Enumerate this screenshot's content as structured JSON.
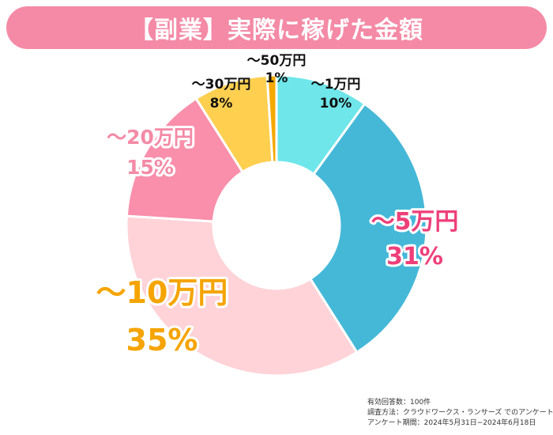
{
  "title": "【副業】実際に稼げた金額",
  "chart_data": {
    "type": "pie",
    "donut": true,
    "categories": [
      "～1万円",
      "～5万円",
      "～10万円",
      "～20万円",
      "～30万円",
      "～50万円"
    ],
    "values": [
      10,
      31,
      35,
      15,
      8,
      1
    ],
    "value_labels": [
      "10%",
      "31%",
      "35%",
      "15%",
      "8%",
      "1%"
    ],
    "colors": [
      "#6ee6ea",
      "#45b8d8",
      "#ffd3d8",
      "#f98fab",
      "#ffcf50",
      "#f5a800"
    ],
    "label_colors": [
      "#111111",
      "#ee3f79",
      "#f5a400",
      "#f48aa6",
      "#111111",
      "#111111"
    ]
  },
  "notes": [
    "有効回答数：100件",
    "調査方法：クラウドワークス・ランサーズ でのアンケート",
    "アンケート期間：2024年5月31日−2024年6月18日"
  ]
}
